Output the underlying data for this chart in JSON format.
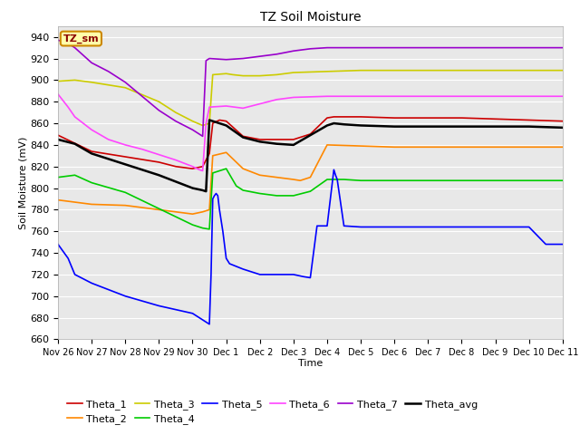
{
  "title": "TZ Soil Moisture",
  "xlabel": "Time",
  "ylabel": "Soil Moisture (mV)",
  "ylim": [
    660,
    950
  ],
  "yticks": [
    660,
    680,
    700,
    720,
    740,
    760,
    780,
    800,
    820,
    840,
    860,
    880,
    900,
    920,
    940
  ],
  "figsize": [
    6.4,
    4.8
  ],
  "dpi": 100,
  "background_color": "#ffffff",
  "plot_bg": "#e8e8e8",
  "legend_label": "TZ_sm",
  "series": {
    "Theta_1": {
      "color": "#cc0000"
    },
    "Theta_2": {
      "color": "#ff8800"
    },
    "Theta_3": {
      "color": "#cccc00"
    },
    "Theta_4": {
      "color": "#00cc00"
    },
    "Theta_5": {
      "color": "#0000ff"
    },
    "Theta_6": {
      "color": "#ff44ff"
    },
    "Theta_7": {
      "color": "#9900cc"
    },
    "Theta_avg": {
      "color": "#000000"
    }
  },
  "x_tick_labels": [
    "Nov 26",
    "Nov 27",
    "Nov 28",
    "Nov 29",
    "Nov 30",
    "Dec 1",
    "Dec 2",
    "Dec 3",
    "Dec 4",
    "Dec 5",
    "Dec 6",
    "Dec 7",
    "Dec 8",
    "Dec 9",
    "Dec 10",
    "Dec 11"
  ],
  "Theta_1": {
    "x": [
      0,
      1,
      2,
      3,
      3.5,
      4,
      4.3,
      4.5,
      4.6,
      4.8,
      5.0,
      5.5,
      6,
      6.5,
      7,
      7.5,
      8,
      8.2,
      8.5,
      9,
      10,
      11,
      12,
      13,
      14,
      15
    ],
    "y": [
      849,
      834,
      829,
      824,
      820,
      818,
      820,
      832,
      860,
      863,
      862,
      848,
      845,
      845,
      845,
      850,
      865,
      866,
      866,
      866,
      865,
      865,
      865,
      864,
      863,
      862
    ]
  },
  "Theta_2": {
    "x": [
      0,
      1,
      2,
      3,
      4,
      4.3,
      4.5,
      4.6,
      5.0,
      5.5,
      6,
      6.5,
      7,
      7.2,
      7.5,
      8,
      9,
      10,
      11,
      12,
      13,
      14,
      15
    ],
    "y": [
      789,
      785,
      784,
      780,
      776,
      778,
      780,
      830,
      833,
      818,
      812,
      810,
      808,
      807,
      810,
      840,
      839,
      838,
      838,
      838,
      838,
      838,
      838
    ]
  },
  "Theta_3": {
    "x": [
      0,
      0.5,
      1,
      2,
      3,
      3.5,
      4,
      4.3,
      4.5,
      4.6,
      5.0,
      5.2,
      5.5,
      6,
      6.5,
      7,
      8,
      9,
      10,
      11,
      12,
      13,
      14,
      15
    ],
    "y": [
      899,
      900,
      898,
      893,
      880,
      870,
      862,
      858,
      860,
      905,
      906,
      905,
      904,
      904,
      905,
      907,
      908,
      909,
      909,
      909,
      909,
      909,
      909,
      909
    ]
  },
  "Theta_4": {
    "x": [
      0,
      0.5,
      1,
      2,
      3,
      4,
      4.3,
      4.5,
      4.6,
      5.0,
      5.3,
      5.5,
      6,
      6.5,
      7,
      7.5,
      8,
      8.2,
      8.5,
      9,
      10,
      11,
      12,
      13,
      14,
      15
    ],
    "y": [
      810,
      812,
      805,
      796,
      781,
      766,
      763,
      762,
      814,
      818,
      802,
      798,
      795,
      793,
      793,
      797,
      808,
      808,
      808,
      807,
      807,
      807,
      807,
      807,
      807,
      807
    ]
  },
  "Theta_5": {
    "x": [
      0,
      0.3,
      0.5,
      1,
      2,
      3,
      4,
      4.1,
      4.2,
      4.25,
      4.3,
      4.35,
      4.4,
      4.45,
      4.5,
      4.55,
      4.6,
      4.65,
      4.7,
      4.75,
      4.8,
      4.9,
      5.0,
      5.1,
      5.5,
      6,
      6.5,
      7,
      7.3,
      7.5,
      7.7,
      8,
      8.2,
      8.25,
      8.3,
      8.5,
      9,
      10,
      11,
      12,
      13,
      14,
      14.5,
      15
    ],
    "y": [
      748,
      735,
      720,
      712,
      700,
      691,
      684,
      682,
      680,
      679,
      678,
      677,
      676,
      675,
      674,
      720,
      790,
      793,
      795,
      793,
      780,
      760,
      735,
      730,
      725,
      720,
      720,
      720,
      718,
      717,
      765,
      765,
      817,
      812,
      808,
      765,
      764,
      764,
      764,
      764,
      764,
      764,
      748,
      748
    ]
  },
  "Theta_6": {
    "x": [
      0,
      0.3,
      0.5,
      1,
      1.5,
      2,
      2.5,
      3,
      3.5,
      4,
      4.2,
      4.3,
      4.4,
      4.5,
      5.0,
      5.5,
      6,
      6.5,
      7,
      8,
      9,
      10,
      11,
      12,
      13,
      14,
      15
    ],
    "y": [
      887,
      875,
      866,
      854,
      845,
      840,
      836,
      831,
      826,
      820,
      817,
      816,
      860,
      875,
      876,
      874,
      878,
      882,
      884,
      885,
      885,
      885,
      885,
      885,
      885,
      885,
      885
    ]
  },
  "Theta_7": {
    "x": [
      0,
      0.3,
      0.5,
      1,
      1.5,
      2,
      2.5,
      3,
      3.5,
      4,
      4.2,
      4.3,
      4.4,
      4.5,
      5.0,
      5.5,
      6,
      6.5,
      7,
      7.5,
      8,
      9,
      10,
      11,
      12,
      13,
      14,
      15
    ],
    "y": [
      937,
      934,
      930,
      916,
      908,
      898,
      885,
      872,
      862,
      854,
      850,
      848,
      918,
      920,
      919,
      920,
      922,
      924,
      927,
      929,
      930,
      930,
      930,
      930,
      930,
      930,
      930,
      930
    ]
  },
  "Theta_avg": {
    "x": [
      0,
      0.5,
      1,
      2,
      3,
      4,
      4.3,
      4.4,
      4.5,
      5.0,
      5.5,
      6,
      6.5,
      7,
      8,
      8.2,
      8.5,
      9,
      10,
      11,
      12,
      13,
      14,
      15
    ],
    "y": [
      845,
      841,
      832,
      822,
      812,
      800,
      798,
      797,
      863,
      858,
      847,
      843,
      841,
      840,
      858,
      860,
      859,
      858,
      857,
      857,
      857,
      857,
      857,
      856
    ]
  }
}
